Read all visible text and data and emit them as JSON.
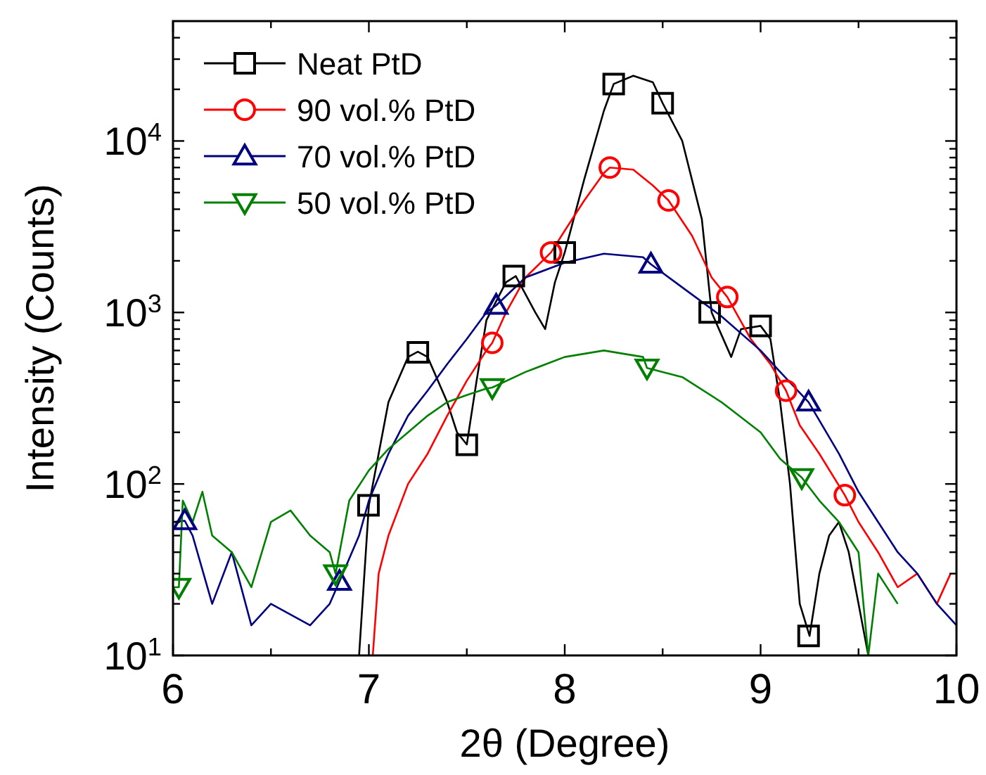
{
  "chart_data": {
    "type": "line",
    "xlabel": "2θ (Degree)",
    "ylabel": "Intensity (Counts)",
    "log": "y",
    "legend": "top left",
    "xlim": [
      6,
      10
    ],
    "xticks": [
      6,
      {
        "value": 6.5,
        "label": null
      },
      7,
      {
        "value": 7.5,
        "label": null
      },
      8,
      {
        "value": 8.5,
        "label": null
      },
      9,
      {
        "value": 9.5,
        "label": null
      },
      10
    ],
    "ylim": [
      10,
      50000
    ],
    "yticks": [
      {
        "value": 10,
        "label": "10$^{1}$"
      },
      {
        "value": 20,
        "label": null
      },
      {
        "value": 30,
        "label": null
      },
      {
        "value": 40,
        "label": null
      },
      {
        "value": 50,
        "label": null
      },
      {
        "value": 60,
        "label": null
      },
      {
        "value": 70,
        "label": null
      },
      {
        "value": 80,
        "label": null
      },
      {
        "value": 90,
        "label": null
      },
      {
        "value": 100,
        "label": "10$^{2}$"
      },
      {
        "value": 200,
        "label": null
      },
      {
        "value": 300,
        "label": null
      },
      {
        "value": 400,
        "label": null
      },
      {
        "value": 500,
        "label": null
      },
      {
        "value": 600,
        "label": null
      },
      {
        "value": 700,
        "label": null
      },
      {
        "value": 800,
        "label": null
      },
      {
        "value": 900,
        "label": null
      },
      {
        "value": 1000,
        "label": "10$^{3}$"
      },
      {
        "value": 2000,
        "label": null
      },
      {
        "value": 3000,
        "label": null
      },
      {
        "value": 4000,
        "label": null
      },
      {
        "value": 5000,
        "label": null
      },
      {
        "value": 6000,
        "label": null
      },
      {
        "value": 7000,
        "label": null
      },
      {
        "value": 8000,
        "label": null
      },
      {
        "value": 9000,
        "label": null
      },
      {
        "value": 10000,
        "label": "10$^{4}$"
      },
      {
        "value": 20000,
        "label": null
      },
      {
        "value": 30000,
        "label": null
      },
      {
        "value": 40000,
        "label": null
      }
    ],
    "series": [
      {
        "color": "#000000",
        "marker": "none",
        "x": [
          6.95,
          7.0,
          7.1,
          7.2,
          7.25,
          7.3,
          7.4,
          7.45,
          7.5,
          7.55,
          7.6,
          7.7,
          7.75,
          7.85,
          7.9,
          7.95,
          8.0,
          8.1,
          8.2,
          8.25,
          8.35,
          8.45,
          8.5,
          8.6,
          8.7,
          8.75,
          8.85,
          8.9,
          9.0,
          9.05,
          9.1,
          9.15,
          9.2,
          9.25,
          9.3,
          9.35,
          9.4,
          9.45,
          9.5,
          9.55
        ],
        "values": [
          10,
          75,
          300,
          550,
          590,
          550,
          300,
          200,
          170,
          400,
          900,
          1500,
          1630,
          1000,
          800,
          1500,
          2240,
          6000,
          15000,
          21500,
          24000,
          22000,
          16600,
          10000,
          3500,
          1000,
          550,
          800,
          835,
          700,
          300,
          100,
          20,
          13,
          30,
          50,
          60,
          40,
          20,
          10
        ]
      },
      {
        "color": "#ff0000",
        "marker": "none",
        "x": [
          7.02,
          7.05,
          7.1,
          7.2,
          7.3,
          7.4,
          7.5,
          7.6,
          7.63,
          7.7,
          7.8,
          7.93,
          8.0,
          8.1,
          8.2,
          8.23,
          8.35,
          8.45,
          8.53,
          8.65,
          8.75,
          8.83,
          8.95,
          9.05,
          9.13,
          9.2,
          9.3,
          9.43,
          9.5,
          9.6,
          9.7,
          9.8,
          9.9,
          9.97
        ],
        "values": [
          10,
          30,
          50,
          100,
          150,
          250,
          400,
          600,
          665,
          1000,
          1600,
          2240,
          3000,
          4500,
          6500,
          7000,
          6800,
          5500,
          4500,
          2800,
          1600,
          1230,
          700,
          500,
          350,
          220,
          150,
          86,
          60,
          40,
          25,
          30,
          20,
          30
        ]
      },
      {
        "color": "#000080",
        "marker": "none",
        "x": [
          6.0,
          6.06,
          6.1,
          6.2,
          6.3,
          6.4,
          6.5,
          6.7,
          6.8,
          6.85,
          6.95,
          7.0,
          7.1,
          7.2,
          7.3,
          7.4,
          7.5,
          7.6,
          7.65,
          7.8,
          8.0,
          8.2,
          8.4,
          8.44,
          8.6,
          8.8,
          9.0,
          9.1,
          9.245,
          9.4,
          9.5,
          9.6,
          9.7,
          9.8,
          9.9,
          10.0
        ],
        "values": [
          60,
          61,
          50,
          20,
          40,
          15,
          20,
          15,
          20,
          27,
          50,
          80,
          150,
          250,
          350,
          500,
          700,
          1000,
          1100,
          1600,
          1950,
          2200,
          2100,
          1910,
          1400,
          950,
          600,
          450,
          300,
          150,
          90,
          60,
          40,
          30,
          20,
          15
        ]
      },
      {
        "color": "#008000",
        "marker": "none",
        "x": [
          6.0,
          6.03,
          6.05,
          6.1,
          6.15,
          6.2,
          6.3,
          6.4,
          6.5,
          6.6,
          6.7,
          6.8,
          6.83,
          6.9,
          7.0,
          7.1,
          7.2,
          7.3,
          7.4,
          7.5,
          7.6,
          7.63,
          7.8,
          8.0,
          8.2,
          8.4,
          8.42,
          8.6,
          8.8,
          9.0,
          9.1,
          9.21,
          9.3,
          9.4,
          9.5,
          9.55,
          9.6,
          9.7
        ],
        "values": [
          25,
          25,
          80,
          60,
          90,
          50,
          40,
          25,
          60,
          70,
          50,
          40,
          30,
          80,
          120,
          160,
          200,
          250,
          300,
          330,
          360,
          365,
          450,
          550,
          600,
          550,
          475,
          420,
          300,
          200,
          140,
          109,
          80,
          60,
          40,
          10,
          30,
          20
        ]
      },
      {
        "type": "scatter",
        "name": "Neat PtD",
        "color": "#000000",
        "marker": "square",
        "x": [
          6.998,
          7.25,
          7.5,
          7.74,
          8.0,
          8.25,
          8.5,
          8.74,
          9.0,
          9.245
        ],
        "values": [
          75,
          585,
          169,
          1630,
          2240,
          21500,
          16600,
          1000,
          835,
          13
        ]
      },
      {
        "type": "scatter",
        "name": "90 vol.% PtD",
        "color": "#ff0000",
        "marker": "circle",
        "x": [
          7.63,
          7.93,
          8.23,
          8.53,
          8.83,
          9.13,
          9.43
        ],
        "values": [
          665,
          2240,
          7000,
          4500,
          1230,
          350,
          86
        ]
      },
      {
        "type": "scatter",
        "name": "70 vol.% PtD",
        "color": "#000080",
        "marker": "triangle",
        "x": [
          6.06,
          6.85,
          7.65,
          8.44,
          9.245
        ],
        "values": [
          61,
          27,
          1100,
          1910,
          300
        ]
      },
      {
        "type": "scatter",
        "name": "50 vol.% PtD",
        "color": "#008000",
        "marker": "triangle-down",
        "x": [
          6.03,
          6.83,
          7.63,
          8.42,
          9.21
        ],
        "values": [
          25,
          30,
          365,
          475,
          109
        ]
      }
    ]
  }
}
